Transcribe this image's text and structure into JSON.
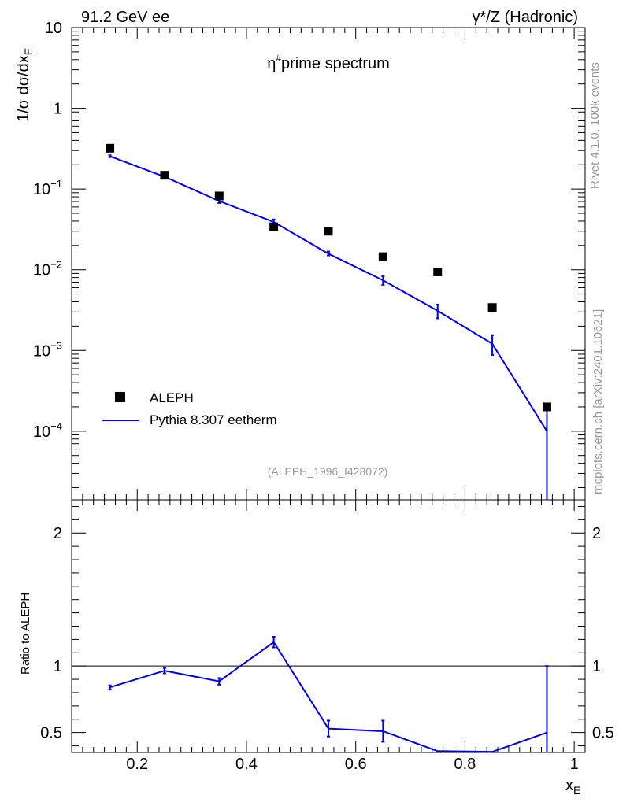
{
  "header": {
    "left": "91.2 GeV ee",
    "right": "γ*/Z (Hadronic)",
    "side_top": "Rivet 4.1.0,  100k events",
    "side_bottom": "mcplots.cern.ch [arXiv:2401.10621]"
  },
  "colors": {
    "data": "#000000",
    "mc": "#0000e6",
    "ref_line": "#000000",
    "watermark": "#999999"
  },
  "chart_data": [
    {
      "type": "scatter",
      "scale": "log",
      "title": "η#prime spectrum",
      "title_main": "η",
      "title_sup": "#",
      "title_rest": "prime spectrum",
      "ylabel_pre": "1/σ  dσ/dx",
      "ylabel_sub": "E",
      "analysis_id": "(ALEPH_1996_I428072)",
      "xlim": [
        0.08,
        1.02
      ],
      "ylim_log10": [
        -4.85,
        1.0
      ],
      "y_ticks": [
        {
          "exp": 1,
          "label": "10"
        },
        {
          "exp": 0,
          "label": "1"
        },
        {
          "exp": -1,
          "base": "10",
          "sup": "−1"
        },
        {
          "exp": -2,
          "base": "10",
          "sup": "−2"
        },
        {
          "exp": -3,
          "base": "10",
          "sup": "−3"
        },
        {
          "exp": -4,
          "base": "10",
          "sup": "−4"
        }
      ],
      "legend": [
        {
          "name": "ALEPH",
          "marker": "square"
        },
        {
          "name": "Pythia 8.307 eetherm",
          "marker": "line"
        }
      ],
      "series": [
        {
          "name": "ALEPH",
          "x": [
            0.15,
            0.25,
            0.35,
            0.45,
            0.55,
            0.65,
            0.75,
            0.85,
            0.95
          ],
          "y": [
            0.32,
            0.148,
            0.082,
            0.034,
            0.03,
            0.0145,
            0.0094,
            0.0034,
            0.0002
          ]
        },
        {
          "name": "Pythia 8.307 eetherm",
          "x": [
            0.15,
            0.25,
            0.35,
            0.45,
            0.55,
            0.65,
            0.75,
            0.85,
            0.95
          ],
          "y": [
            0.255,
            0.142,
            0.071,
            0.039,
            0.0158,
            0.0074,
            0.0031,
            0.00121,
            0.0001
          ],
          "err_lo": [
            0.248,
            0.138,
            0.067,
            0.036,
            0.015,
            0.0065,
            0.0025,
            0.00088,
            1e-05
          ],
          "err_hi": [
            0.262,
            0.146,
            0.075,
            0.042,
            0.0168,
            0.0083,
            0.0037,
            0.00155,
            0.0002
          ]
        }
      ]
    },
    {
      "type": "line",
      "ylabel": "Ratio to ALEPH",
      "xlabel_main": "x",
      "xlabel_sub": "E",
      "xlim": [
        0.08,
        1.02
      ],
      "ylim": [
        0.35,
        2.25
      ],
      "x_ticks": [
        0.2,
        0.4,
        0.6,
        0.8,
        1.0
      ],
      "x_tick_labels": [
        "0.2",
        "0.4",
        "0.6",
        "0.8",
        "1"
      ],
      "y_ticks": [
        0.5,
        1,
        2
      ],
      "y_tick_labels": [
        "0.5",
        "1",
        "2"
      ],
      "reference": 1,
      "series": [
        {
          "name": "Pythia 8.307 eetherm / ALEPH",
          "x": [
            0.15,
            0.25,
            0.35,
            0.45,
            0.55,
            0.65,
            0.75,
            0.85,
            0.95
          ],
          "y": [
            0.84,
            0.965,
            0.885,
            1.18,
            0.53,
            0.51,
            0.36,
            0.355,
            0.5
          ],
          "err_lo": [
            0.825,
            0.945,
            0.86,
            1.14,
            0.47,
            0.43,
            0.36,
            0.355,
            0.0
          ],
          "err_hi": [
            0.855,
            0.985,
            0.91,
            1.22,
            0.59,
            0.59,
            0.36,
            0.355,
            1.0
          ]
        }
      ]
    }
  ]
}
